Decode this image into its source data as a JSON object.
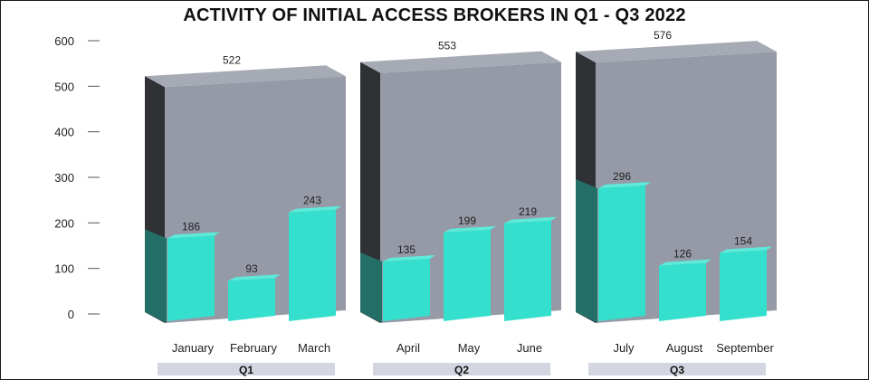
{
  "chart_data": {
    "type": "bar",
    "title": "ACTIVITY OF INITIAL ACCESS BROKERS IN Q1 - Q3 2022",
    "xlabel": "",
    "ylabel": "",
    "ylim": [
      0,
      600
    ],
    "y_ticks": [
      0,
      100,
      200,
      300,
      400,
      500,
      600
    ],
    "grid": false,
    "legend": "none",
    "groups": [
      {
        "name": "Q1",
        "total": 522,
        "categories": [
          "January",
          "February",
          "March"
        ],
        "values": [
          186,
          93,
          243
        ]
      },
      {
        "name": "Q2",
        "total": 553,
        "categories": [
          "April",
          "May",
          "June"
        ],
        "values": [
          135,
          199,
          219
        ]
      },
      {
        "name": "Q3",
        "total": 576,
        "categories": [
          "July",
          "August",
          "September"
        ],
        "values": [
          296,
          126,
          154
        ]
      }
    ]
  },
  "colors": {
    "total_front": "#959aa6",
    "total_top": "#a6aab4",
    "total_side": "#2f3135",
    "month_front": "#34e0cd",
    "month_top": "#5eeada",
    "month_side": "#236e66",
    "quarter_band": "#d3d6e0",
    "axis": "#555555"
  }
}
